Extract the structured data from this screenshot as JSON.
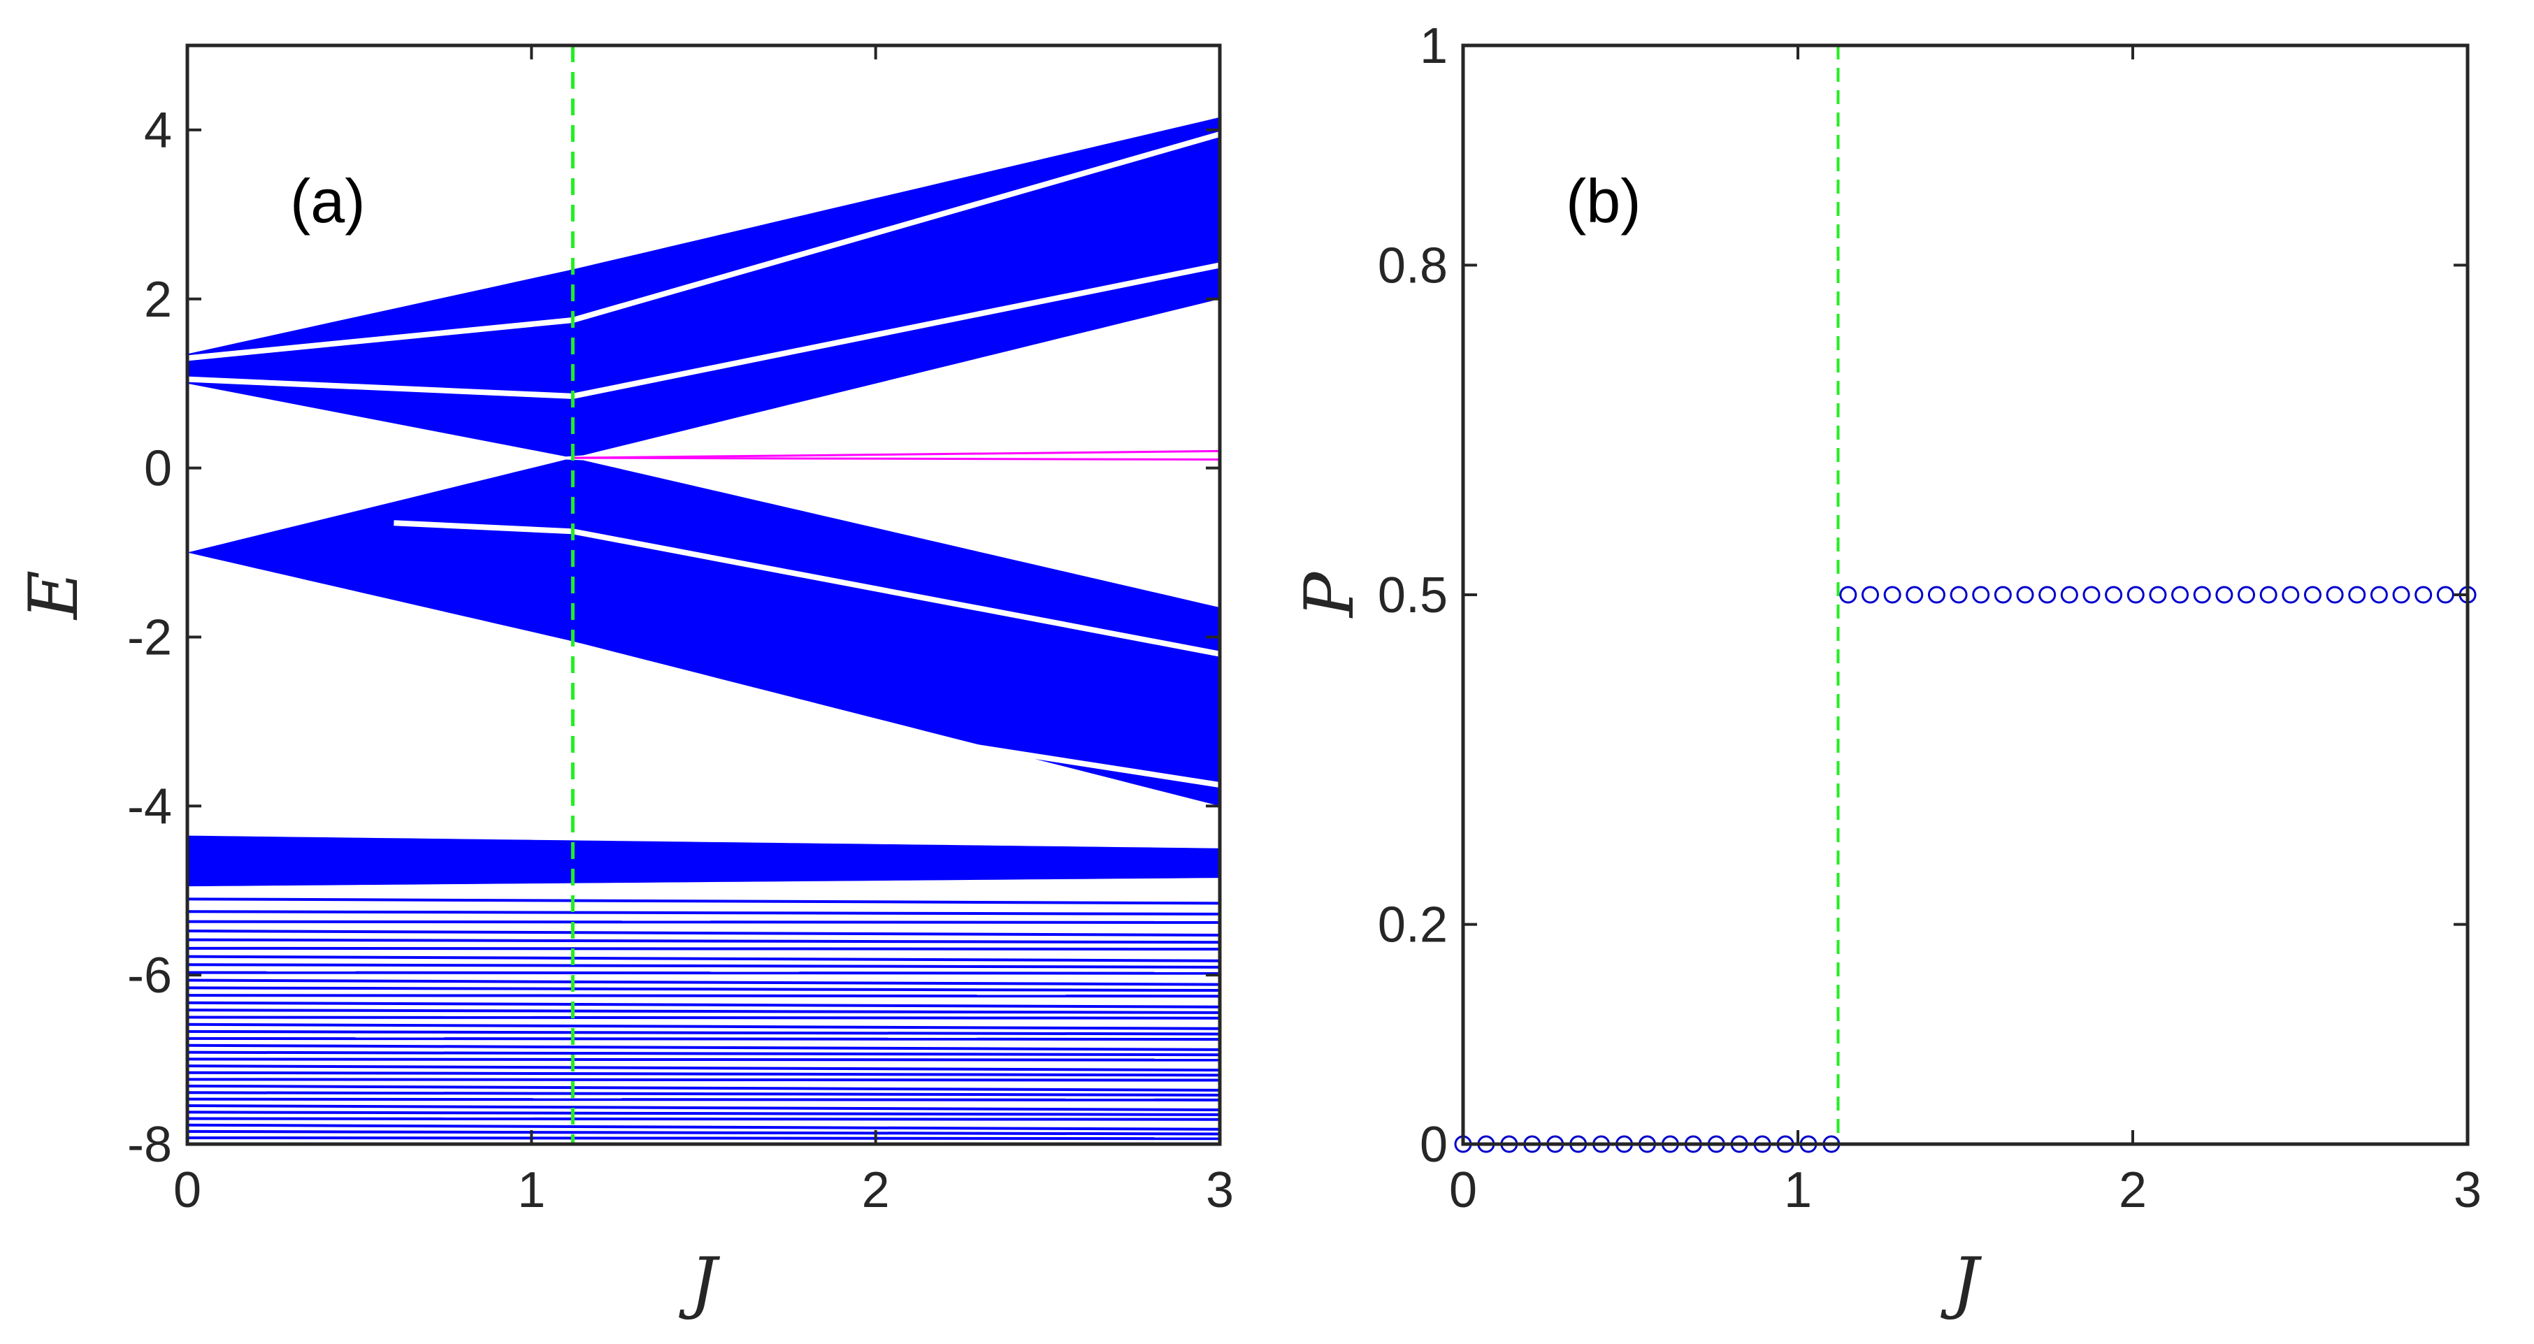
{
  "colors": {
    "band": "#0000ff",
    "edge_state": "#ff00ff",
    "critical_line": "#22ee22",
    "marker": "#0000cc",
    "axis": "#262626"
  },
  "chart_data": [
    {
      "panel": "(a)",
      "type": "line",
      "xlabel": "J",
      "ylabel": "E",
      "xlim": [
        0,
        3
      ],
      "ylim": [
        -8,
        5
      ],
      "xticks": [
        0,
        1,
        2,
        3
      ],
      "xtick_labels": [
        "0",
        "1",
        "2",
        "3"
      ],
      "yticks": [
        4,
        2,
        0,
        -2,
        -4,
        -6,
        -8
      ],
      "ytick_labels": [
        "4",
        "2",
        "0",
        "-2",
        "-4",
        "-6",
        "-8"
      ],
      "critical_J": 1.12,
      "bands": [
        {
          "name": "upper band",
          "J": [
            0,
            1.12,
            3
          ],
          "E_max": [
            1.35,
            2.35,
            4.15
          ],
          "E_min": [
            1.0,
            0.12,
            2.0
          ],
          "gaps": [
            {
              "J": [
                0,
                1.12,
                3
              ],
              "E": [
                1.05,
                0.85,
                2.4
              ]
            },
            {
              "J": [
                0,
                1.12,
                3
              ],
              "E": [
                1.3,
                1.75,
                3.95
              ]
            }
          ]
        },
        {
          "name": "middle band",
          "J": [
            0,
            1.12,
            3
          ],
          "E_max": [
            -1.0,
            0.12,
            -1.65
          ],
          "E_min": [
            -1.0,
            -2.05,
            -4.0
          ],
          "gaps": [
            {
              "J": [
                0.6,
                1.12,
                3
              ],
              "E": [
                -0.65,
                -0.75,
                -2.2
              ]
            },
            {
              "J": [
                1.5,
                3
              ],
              "E": [
                -2.8,
                -3.75
              ]
            }
          ]
        },
        {
          "name": "lower band",
          "J": [
            0,
            3
          ],
          "E_max": [
            -4.35,
            -4.5
          ],
          "E_min": [
            -4.95,
            -4.85
          ]
        }
      ],
      "edge_states": [
        {
          "J": [
            1.12,
            3
          ],
          "E": [
            0.12,
            0.2
          ]
        },
        {
          "J": [
            1.12,
            3
          ],
          "E": [
            0.12,
            0.1
          ]
        }
      ],
      "bulk_levels_range": [
        -8.0,
        -5.1
      ]
    },
    {
      "panel": "(b)",
      "type": "scatter",
      "xlabel": "J",
      "ylabel": "P",
      "xlim": [
        0,
        3
      ],
      "ylim": [
        0,
        1
      ],
      "xticks": [
        0,
        1,
        2,
        3
      ],
      "xtick_labels": [
        "0",
        "1",
        "2",
        "3"
      ],
      "yticks": [
        0,
        0.2,
        0.5,
        0.8,
        1
      ],
      "ytick_labels": [
        "0",
        "0.2",
        "0.5",
        "0.8",
        "1"
      ],
      "critical_J": 1.12,
      "series": [
        {
          "x_start": 0,
          "x_end": 1.1,
          "x_step": 0.0667,
          "y": 0
        },
        {
          "x_start": 1.15,
          "x_end": 3.0,
          "x_step": 0.0667,
          "y": 0.5
        }
      ]
    }
  ]
}
